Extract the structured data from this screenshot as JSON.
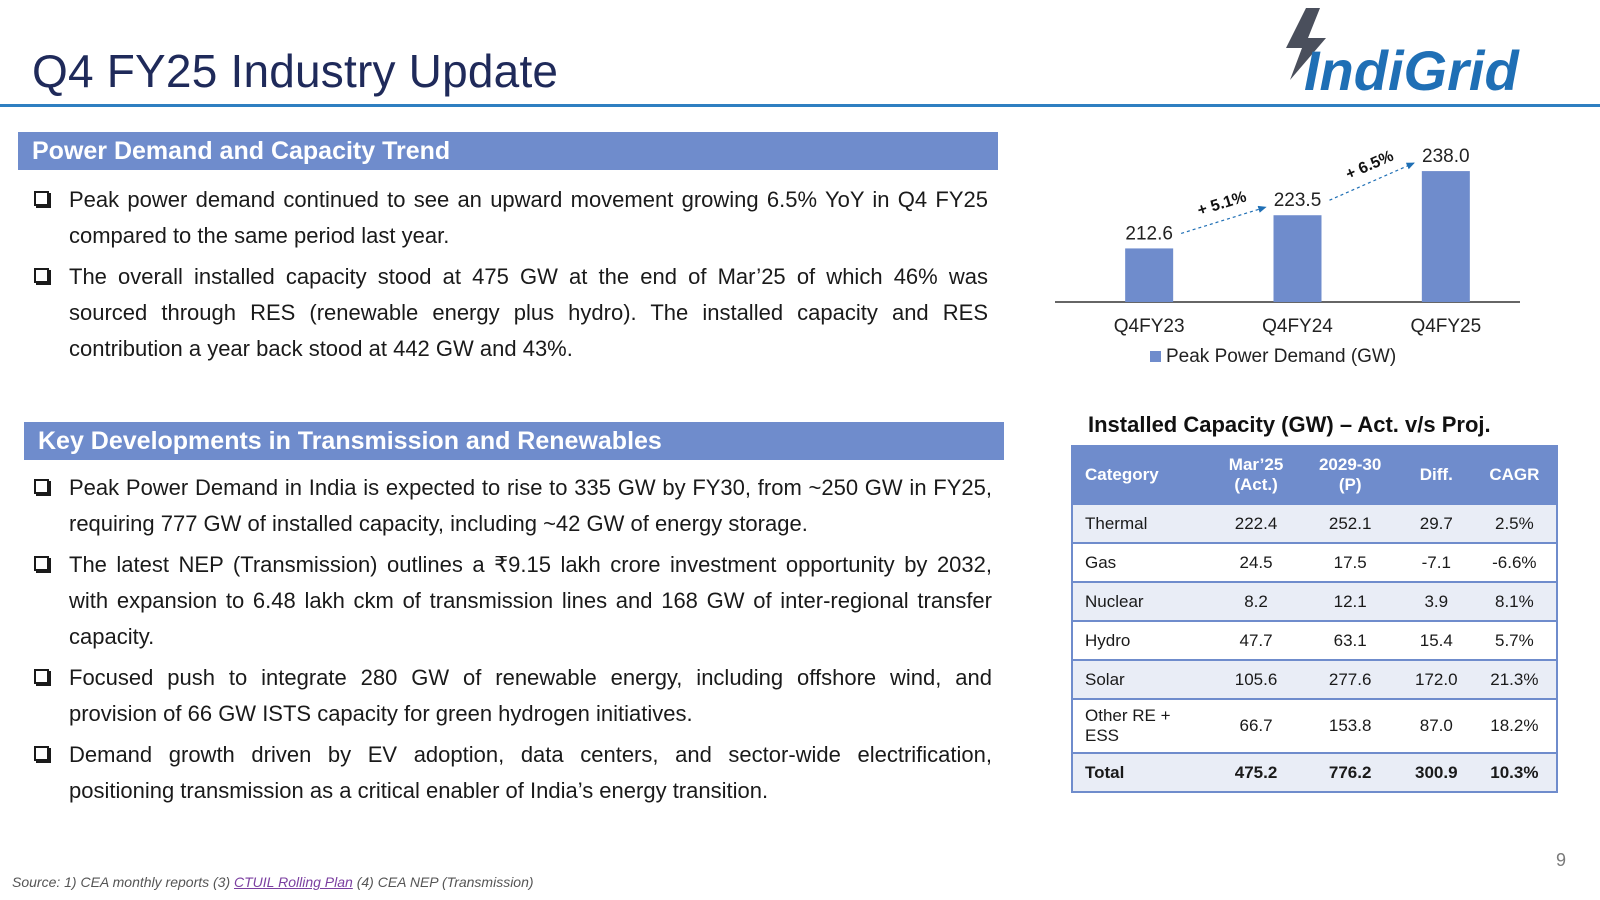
{
  "header": {
    "title": "Q4 FY25 Industry Update",
    "logo_text": "IndiGrid",
    "brand_color": "#1f6fb5",
    "rule_color": "#2f7fc1"
  },
  "sections": [
    {
      "title": "Power Demand and Capacity Trend",
      "bullets": [
        "Peak power demand continued to see an upward movement growing 6.5% YoY in Q4 FY25 compared to the same period last year.",
        "The overall installed capacity stood at 475 GW at the end of Mar’25 of which 46% was sourced through RES (renewable energy plus hydro). The installed capacity and RES contribution a year back stood at 442 GW and 43%."
      ]
    },
    {
      "title": "Key Developments in Transmission and Renewables",
      "bullets": [
        "Peak Power Demand in India is expected to rise to 335 GW by FY30, from ~250 GW in FY25, requiring 777 GW of installed capacity, including ~42 GW of energy storage.",
        "The latest NEP (Transmission) outlines a ₹9.15 lakh crore investment opportunity by 2032, with expansion to 6.48 lakh ckm of transmission lines and 168 GW of inter-regional transfer capacity.",
        "Focused push to integrate 280 GW of renewable energy, including offshore wind, and provision of 66 GW ISTS capacity for green hydrogen initiatives.",
        "Demand growth driven by EV adoption, data centers, and sector-wide electrification, positioning transmission as a critical enabler of India’s energy transition."
      ]
    }
  ],
  "chart_data": {
    "type": "bar",
    "categories": [
      "Q4FY23",
      "Q4FY24",
      "Q4FY25"
    ],
    "series": [
      {
        "name": "Peak Power Demand (GW)",
        "values": [
          212.6,
          223.5,
          238.0
        ],
        "labels": [
          "212.6",
          "223.5",
          "238.0"
        ],
        "color": "#6f8ccc"
      }
    ],
    "annotations": [
      "+ 5.1%",
      "+ 6.5%"
    ],
    "ylim": [
      195,
      240
    ],
    "grid": false,
    "legend": "bottom",
    "title": "",
    "xlabel": "",
    "ylabel": ""
  },
  "table": {
    "title": "Installed Capacity (GW) – Act. v/s Proj.",
    "headers": [
      "Category",
      "Mar’25\n(Act.)",
      "2029-30\n(P)",
      "Diff.",
      "CAGR"
    ],
    "rows": [
      [
        "Thermal",
        "222.4",
        "252.1",
        "29.7",
        "2.5%"
      ],
      [
        "Gas",
        "24.5",
        "17.5",
        "-7.1",
        "-6.6%"
      ],
      [
        "Nuclear",
        "8.2",
        "12.1",
        "3.9",
        "8.1%"
      ],
      [
        "Hydro",
        "47.7",
        "63.1",
        "15.4",
        "5.7%"
      ],
      [
        "Solar",
        "105.6",
        "277.6",
        "172.0",
        "21.3%"
      ],
      [
        "Other RE +\nESS",
        "66.7",
        "153.8",
        "87.0",
        "18.2%"
      ],
      [
        "Total",
        "475.2",
        "776.2",
        "300.9",
        "10.3%"
      ]
    ],
    "header_color": "#6f8ccc",
    "stripe_color": "#e9edf6"
  },
  "footer": {
    "page_number": "9",
    "source_prefix": "Source: 1) CEA monthly reports (3) ",
    "source_link": "CTUIL Rolling Plan",
    "source_suffix": " (4) CEA NEP (Transmission)"
  }
}
